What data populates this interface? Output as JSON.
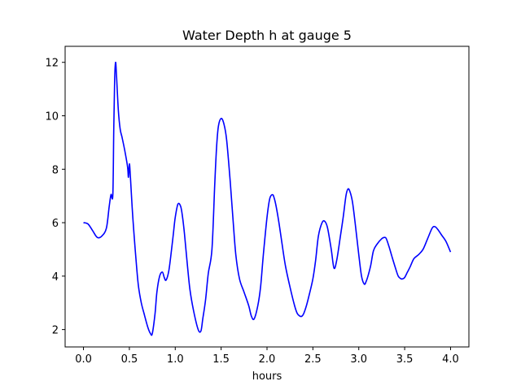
{
  "chart_data": {
    "type": "line",
    "title": "Water Depth h at gauge 5",
    "xlabel": "hours",
    "ylabel": "",
    "xlim": [
      -0.2,
      4.2
    ],
    "ylim": [
      1.35,
      12.6
    ],
    "xticks": [
      0.0,
      0.5,
      1.0,
      1.5,
      2.0,
      2.5,
      3.0,
      3.5,
      4.0
    ],
    "xtick_labels": [
      "0.0",
      "0.5",
      "1.0",
      "1.5",
      "2.0",
      "2.5",
      "3.0",
      "3.5",
      "4.0"
    ],
    "yticks": [
      2,
      4,
      6,
      8,
      10,
      12
    ],
    "ytick_labels": [
      "2",
      "4",
      "6",
      "8",
      "10",
      "12"
    ],
    "grid": false,
    "series": [
      {
        "color": "#0000ff",
        "x": [
          0.0,
          0.05,
          0.1,
          0.15,
          0.2,
          0.25,
          0.28,
          0.3,
          0.32,
          0.33,
          0.34,
          0.35,
          0.36,
          0.38,
          0.4,
          0.42,
          0.45,
          0.48,
          0.49,
          0.5,
          0.51,
          0.53,
          0.55,
          0.58,
          0.6,
          0.63,
          0.66,
          0.7,
          0.73,
          0.75,
          0.78,
          0.8,
          0.83,
          0.86,
          0.88,
          0.9,
          0.93,
          0.96,
          0.98,
          1.0,
          1.03,
          1.06,
          1.08,
          1.1,
          1.13,
          1.16,
          1.2,
          1.25,
          1.28,
          1.3,
          1.33,
          1.36,
          1.4,
          1.43,
          1.45,
          1.47,
          1.5,
          1.53,
          1.56,
          1.6,
          1.63,
          1.66,
          1.7,
          1.75,
          1.8,
          1.83,
          1.86,
          1.9,
          1.93,
          1.96,
          2.0,
          2.03,
          2.06,
          2.08,
          2.1,
          2.13,
          2.16,
          2.2,
          2.25,
          2.3,
          2.33,
          2.36,
          2.38,
          2.4,
          2.43,
          2.46,
          2.5,
          2.53,
          2.56,
          2.6,
          2.63,
          2.66,
          2.7,
          2.73,
          2.76,
          2.8,
          2.83,
          2.86,
          2.88,
          2.9,
          2.93,
          2.96,
          3.0,
          3.03,
          3.06,
          3.08,
          3.1,
          3.13,
          3.16,
          3.2,
          3.25,
          3.28,
          3.3,
          3.33,
          3.36,
          3.4,
          3.43,
          3.46,
          3.48,
          3.5,
          3.53,
          3.56,
          3.6,
          3.65,
          3.7,
          3.75,
          3.8,
          3.83,
          3.86,
          3.9,
          3.95,
          4.0
        ],
        "y": [
          6.0,
          5.95,
          5.7,
          5.45,
          5.5,
          5.8,
          6.6,
          7.05,
          7.05,
          9.5,
          11.4,
          12.0,
          11.5,
          10.2,
          9.5,
          9.2,
          8.7,
          8.1,
          7.7,
          8.2,
          7.8,
          6.6,
          5.6,
          4.3,
          3.6,
          3.0,
          2.6,
          2.1,
          1.85,
          1.85,
          2.6,
          3.4,
          4.0,
          4.15,
          3.95,
          3.85,
          4.2,
          5.0,
          5.6,
          6.2,
          6.7,
          6.6,
          6.2,
          5.6,
          4.5,
          3.5,
          2.7,
          2.0,
          1.95,
          2.4,
          3.1,
          4.1,
          5.0,
          7.4,
          8.8,
          9.6,
          9.9,
          9.7,
          9.1,
          7.5,
          6.1,
          4.8,
          3.9,
          3.4,
          2.9,
          2.5,
          2.4,
          2.9,
          3.6,
          4.8,
          6.2,
          6.9,
          7.05,
          6.9,
          6.6,
          6.0,
          5.3,
          4.4,
          3.6,
          2.9,
          2.6,
          2.5,
          2.5,
          2.6,
          2.9,
          3.3,
          3.9,
          4.6,
          5.5,
          6.0,
          6.05,
          5.8,
          5.0,
          4.3,
          4.6,
          5.5,
          6.2,
          7.0,
          7.25,
          7.2,
          6.8,
          6.0,
          4.8,
          4.0,
          3.7,
          3.8,
          4.0,
          4.4,
          4.95,
          5.2,
          5.4,
          5.45,
          5.4,
          5.1,
          4.75,
          4.3,
          4.0,
          3.9,
          3.9,
          3.95,
          4.15,
          4.35,
          4.65,
          4.8,
          5.0,
          5.4,
          5.8,
          5.85,
          5.75,
          5.55,
          5.3,
          4.9
        ]
      }
    ]
  }
}
